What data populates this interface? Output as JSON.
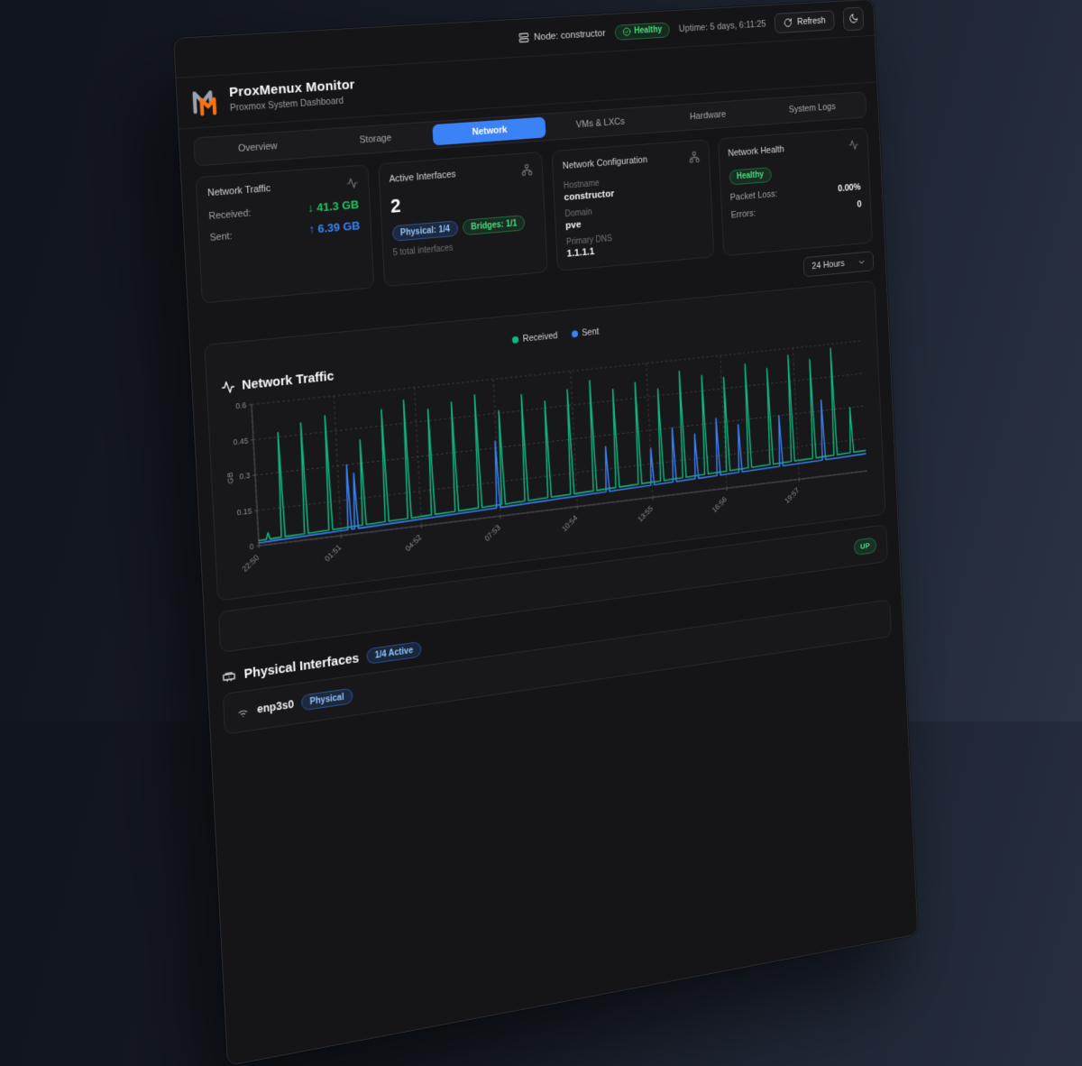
{
  "topbar": {
    "node_label": "Node: constructor",
    "health_badge": "Healthy",
    "uptime": "Uptime: 5 days, 6:11:25",
    "refresh_label": "Refresh"
  },
  "header": {
    "title": "ProxMenux Monitor",
    "subtitle": "Proxmox System Dashboard"
  },
  "tabs": [
    {
      "label": "Overview",
      "active": false
    },
    {
      "label": "Storage",
      "active": false
    },
    {
      "label": "Network",
      "active": true
    },
    {
      "label": "VMs & LXCs",
      "active": false
    },
    {
      "label": "Hardware",
      "active": false
    },
    {
      "label": "System Logs",
      "active": false
    }
  ],
  "cards": {
    "traffic": {
      "title": "Network Traffic",
      "received_label": "Received:",
      "received_value": "↓ 41.3 GB",
      "sent_label": "Sent:",
      "sent_value": "↑ 6.39 GB"
    },
    "interfaces": {
      "title": "Active Interfaces",
      "count": "2",
      "physical_badge": "Physical: 1/4",
      "bridges_badge": "Bridges: 1/1",
      "total": "5 total interfaces"
    },
    "config": {
      "title": "Network Configuration",
      "hostname_label": "Hostname",
      "hostname": "constructor",
      "domain_label": "Domain",
      "domain": "pve",
      "dns_label": "Primary DNS",
      "dns": "1.1.1.1"
    },
    "health": {
      "title": "Network Health",
      "status_badge": "Healthy",
      "packet_loss_label": "Packet Loss:",
      "packet_loss": "0.00%",
      "errors_label": "Errors:",
      "errors": "0"
    }
  },
  "time_range": {
    "selected": "24 Hours"
  },
  "chart_card": {
    "title": "Network Traffic"
  },
  "chart_data": {
    "type": "line",
    "title": "Network Traffic",
    "ylabel": "GB",
    "ylim": [
      0,
      0.6
    ],
    "yticks": [
      0,
      0.15,
      0.3,
      0.45,
      0.6
    ],
    "ytick_labels": [
      "0",
      "0.15",
      "0.3",
      "0.45",
      "0.6"
    ],
    "x_hours_span": 24,
    "xticks": [
      0,
      3.017,
      6.033,
      9.05,
      12.067,
      15.083,
      18.1,
      21.117
    ],
    "xtick_labels": [
      "22:50",
      "01:51",
      "04:52",
      "07:53",
      "10:54",
      "13:55",
      "16:56",
      "19:57"
    ],
    "legend_position": "top-center",
    "grid": "dotted",
    "series": [
      {
        "name": "Received",
        "color": "#10b981",
        "baseline_start": 0.022,
        "baseline_end": 0.095,
        "spikes": [
          [
            0.35,
            0.05
          ],
          [
            0.9,
            0.47
          ],
          [
            1.75,
            0.5
          ],
          [
            2.65,
            0.52
          ],
          [
            3.9,
            0.4
          ],
          [
            4.75,
            0.52
          ],
          [
            5.6,
            0.55
          ],
          [
            6.5,
            0.5
          ],
          [
            7.4,
            0.52
          ],
          [
            8.3,
            0.54
          ],
          [
            9.2,
            0.46
          ],
          [
            10.1,
            0.52
          ],
          [
            11.0,
            0.48
          ],
          [
            11.9,
            0.52
          ],
          [
            12.8,
            0.55
          ],
          [
            13.7,
            0.5
          ],
          [
            14.6,
            0.52
          ],
          [
            15.5,
            0.48
          ],
          [
            16.4,
            0.55
          ],
          [
            17.3,
            0.52
          ],
          [
            18.2,
            0.5
          ],
          [
            19.1,
            0.55
          ],
          [
            20.0,
            0.52
          ],
          [
            20.9,
            0.57
          ],
          [
            21.8,
            0.54
          ],
          [
            22.7,
            0.58
          ],
          [
            23.4,
            0.3
          ]
        ]
      },
      {
        "name": "Sent",
        "color": "#3b82f6",
        "baseline_start": 0.012,
        "baseline_end": 0.08,
        "spikes": [
          [
            3.35,
            0.3
          ],
          [
            3.6,
            0.26
          ],
          [
            9.0,
            0.33
          ],
          [
            13.3,
            0.25
          ],
          [
            15.1,
            0.22
          ],
          [
            16.0,
            0.3
          ],
          [
            16.9,
            0.26
          ],
          [
            17.8,
            0.32
          ],
          [
            18.7,
            0.28
          ],
          [
            20.4,
            0.3
          ],
          [
            22.2,
            0.35
          ]
        ]
      }
    ]
  },
  "bridge_row": {
    "up_badge": "UP"
  },
  "physical_section": {
    "title": "Physical Interfaces",
    "active_badge": "1/4 Active",
    "interfaces": [
      {
        "name": "enp3s0",
        "type_badge": "Physical"
      }
    ]
  },
  "colors": {
    "accent_blue": "#3b82f6",
    "green": "#22c55e",
    "badge_green": "#4ade80",
    "badge_blue": "#93c5fd"
  }
}
